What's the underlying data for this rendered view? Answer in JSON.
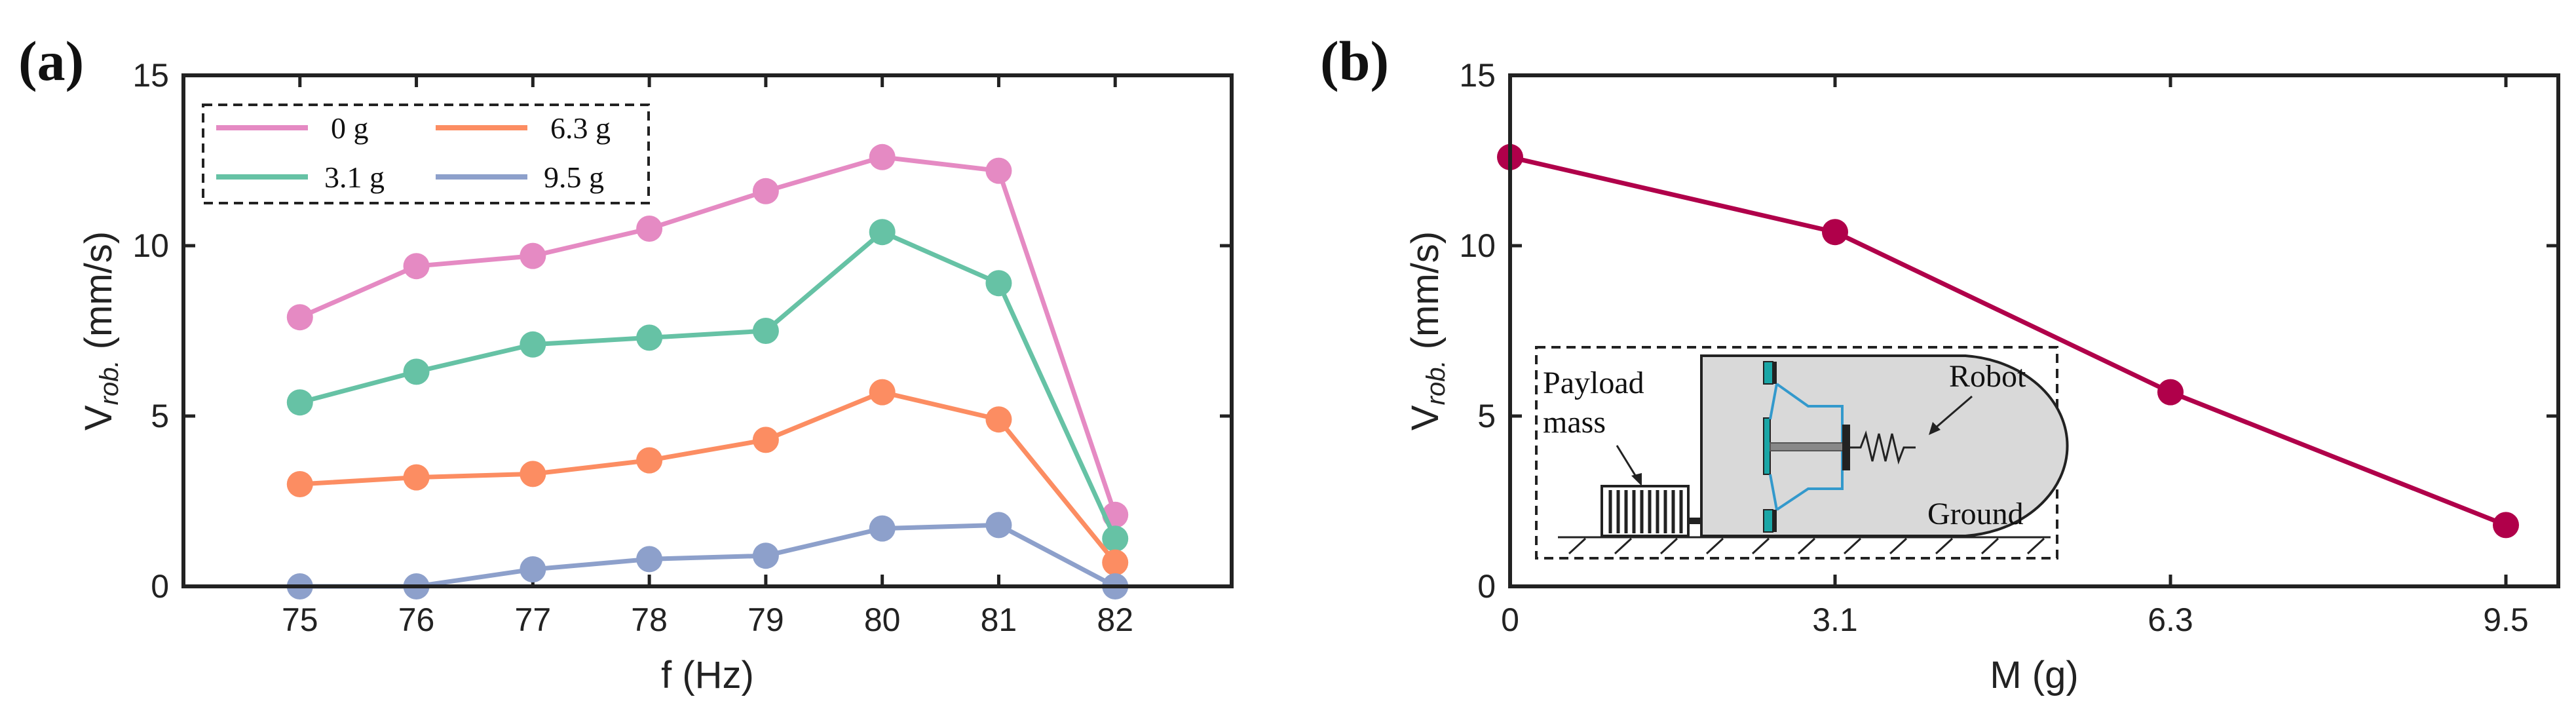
{
  "colors": {
    "axis": "#222222",
    "series": [
      "#e58ac3",
      "#66c2a5",
      "#fc8d62",
      "#8da0cb"
    ],
    "line_b": "#b0004a",
    "inset_body": "#d9d9d9",
    "inset_spring": "#3399cc",
    "inset_pad": "#1aa6a6"
  },
  "chart_data": [
    {
      "type": "line",
      "panel_label": "(a)",
      "xlabel": "f (Hz)",
      "ylabel_main": "V",
      "ylabel_sub": "rob.",
      "ylabel_unit": "(mm/s)",
      "x": [
        75,
        76,
        77,
        78,
        79,
        80,
        81,
        82
      ],
      "xlim": [
        74,
        83
      ],
      "ylim": [
        0,
        15
      ],
      "xticks": [
        "75",
        "76",
        "77",
        "78",
        "79",
        "80",
        "81",
        "82"
      ],
      "yticks": [
        "0",
        "5",
        "10",
        "15"
      ],
      "legend_position": "top-left",
      "series": [
        {
          "name": "0 g",
          "values": [
            7.9,
            9.4,
            9.7,
            10.5,
            11.6,
            12.6,
            12.2,
            2.1
          ]
        },
        {
          "name": "3.1 g",
          "values": [
            5.4,
            6.3,
            7.1,
            7.3,
            7.5,
            10.4,
            8.9,
            1.4
          ]
        },
        {
          "name": "6.3 g",
          "values": [
            3.0,
            3.2,
            3.3,
            3.7,
            4.3,
            5.7,
            4.9,
            0.7
          ]
        },
        {
          "name": "9.5 g",
          "values": [
            0.0,
            0.0,
            0.5,
            0.8,
            0.9,
            1.7,
            1.8,
            0.0
          ]
        }
      ]
    },
    {
      "type": "line",
      "panel_label": "(b)",
      "xlabel": "M (g)",
      "ylabel_main": "V",
      "ylabel_sub": "rob.",
      "ylabel_unit": "(mm/s)",
      "x": [
        0,
        3.1,
        6.3,
        9.5
      ],
      "xlim": [
        0,
        10
      ],
      "ylim": [
        0,
        15
      ],
      "xticks": [
        "0",
        "3.1",
        "6.3",
        "9.5"
      ],
      "yticks": [
        "0",
        "5",
        "10",
        "15"
      ],
      "series": [
        {
          "name": "V",
          "values": [
            12.6,
            10.4,
            5.7,
            1.8
          ]
        }
      ],
      "inset": {
        "payload_line1": "Payload",
        "payload_line2": "mass",
        "robot": "Robot",
        "ground": "Ground"
      }
    }
  ]
}
